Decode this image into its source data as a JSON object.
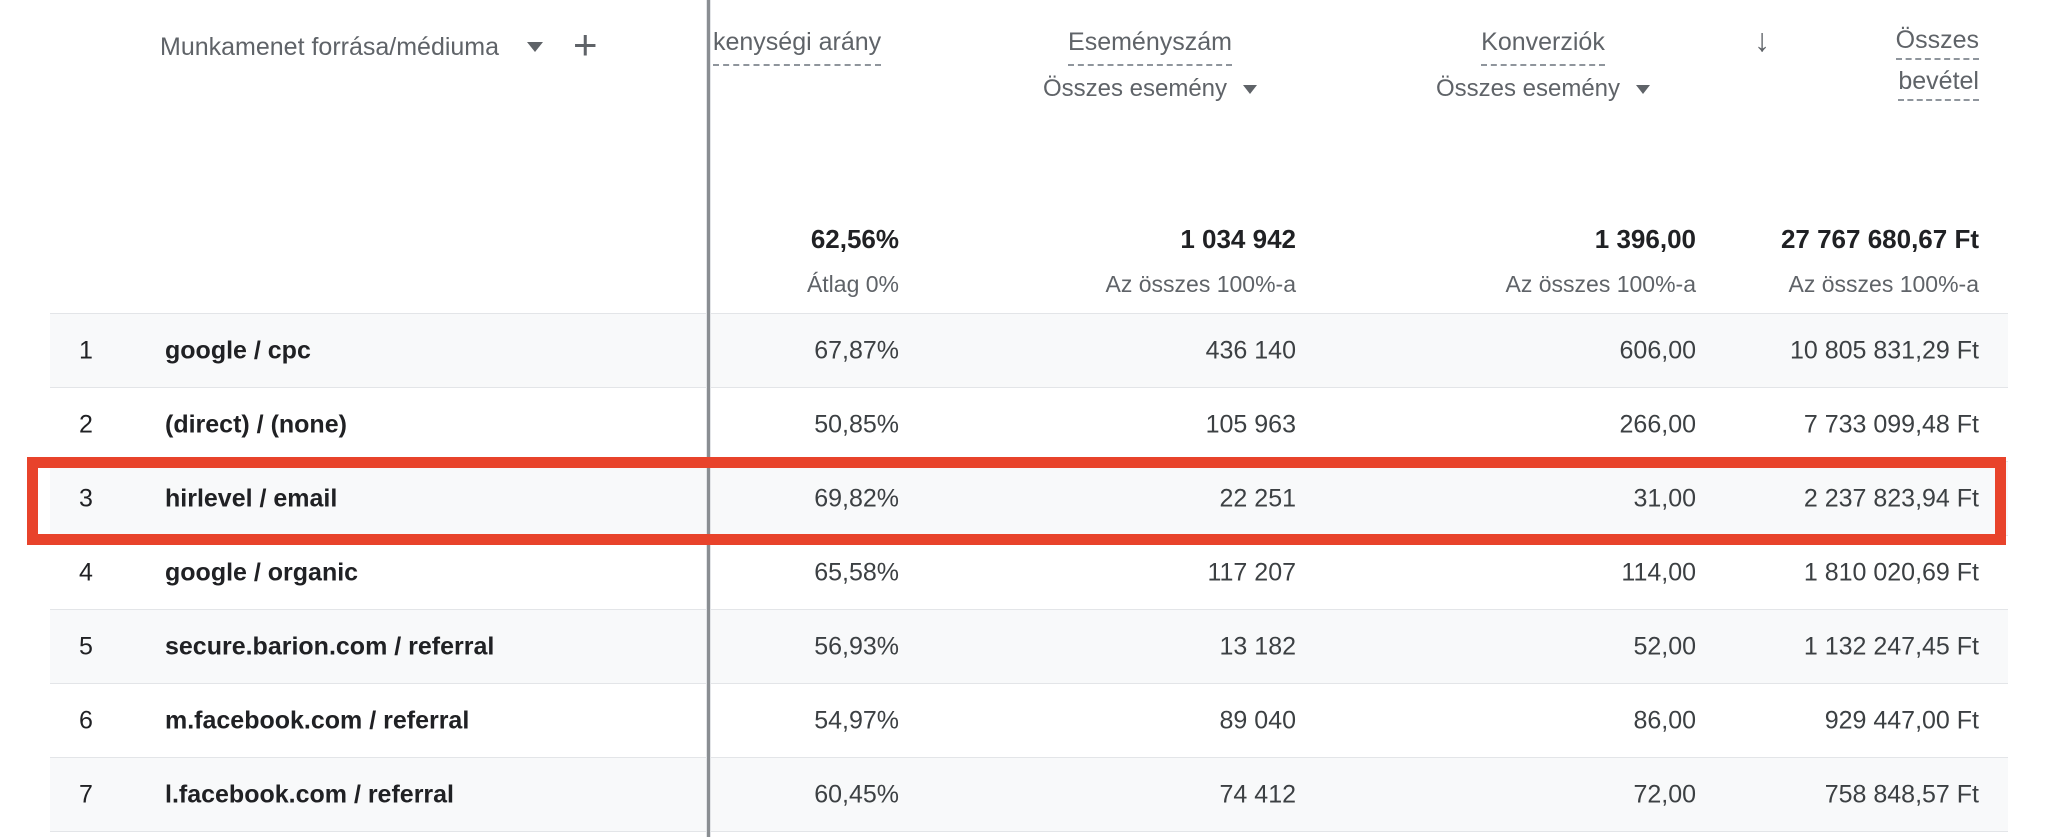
{
  "colors": {
    "highlight_red": "#e8432b",
    "row_stripe": "#f8f9fa",
    "header_text": "#5f6368",
    "body_text": "#202124",
    "divider_gray": "#8a8e92"
  },
  "dimension_header": {
    "label": "Munkamenet forrása/médiuma",
    "add_icon": "+"
  },
  "sort_icon": "↓",
  "columns": [
    {
      "label": "kenységi arány",
      "total": "62,56%",
      "total_caption": "Átlag 0%"
    },
    {
      "label": "Eseményszám",
      "selector_label": "Összes esemény",
      "total": "1 034 942",
      "total_caption": "Az összes 100%-a"
    },
    {
      "label": "Konverziók",
      "selector_label": "Összes esemény",
      "total": "1 396,00",
      "total_caption": "Az összes 100%-a"
    },
    {
      "label_line1": "Összes",
      "label_line2": "bevétel",
      "total": "27 767 680,67 Ft",
      "total_caption": "Az összes 100%-a"
    }
  ],
  "rows": [
    {
      "num": "1",
      "label": "google / cpc",
      "engagement_rate": "67,87%",
      "event_count": "436 140",
      "conversions": "606,00",
      "revenue": "10 805 831,29 Ft",
      "highlighted": false
    },
    {
      "num": "2",
      "label": "(direct) / (none)",
      "engagement_rate": "50,85%",
      "event_count": "105 963",
      "conversions": "266,00",
      "revenue": "7 733 099,48 Ft",
      "highlighted": false
    },
    {
      "num": "3",
      "label": "hirlevel / email",
      "engagement_rate": "69,82%",
      "event_count": "22 251",
      "conversions": "31,00",
      "revenue": "2 237 823,94 Ft",
      "highlighted": true
    },
    {
      "num": "4",
      "label": "google / organic",
      "engagement_rate": "65,58%",
      "event_count": "117 207",
      "conversions": "114,00",
      "revenue": "1 810 020,69 Ft",
      "highlighted": false
    },
    {
      "num": "5",
      "label": "secure.barion.com / referral",
      "engagement_rate": "56,93%",
      "event_count": "13 182",
      "conversions": "52,00",
      "revenue": "1 132 247,45 Ft",
      "highlighted": false
    },
    {
      "num": "6",
      "label": "m.facebook.com / referral",
      "engagement_rate": "54,97%",
      "event_count": "89 040",
      "conversions": "86,00",
      "revenue": "929 447,00 Ft",
      "highlighted": false
    },
    {
      "num": "7",
      "label": "l.facebook.com / referral",
      "engagement_rate": "60,45%",
      "event_count": "74 412",
      "conversions": "72,00",
      "revenue": "758 848,57 Ft",
      "highlighted": false
    }
  ]
}
